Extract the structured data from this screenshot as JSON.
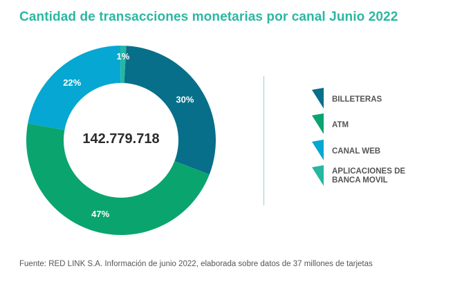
{
  "chart_data": {
    "type": "pie",
    "title": "Cantidad de transacciones monetarias por canal Junio 2022",
    "center_label": "142.779.718",
    "slices": [
      {
        "name": "BILLETERAS",
        "value": 30,
        "label": "30%",
        "color": "#086f8a"
      },
      {
        "name": "ATM",
        "value": 47,
        "label": "47%",
        "color": "#0aa56e"
      },
      {
        "name": "CANAL WEB",
        "value": 22,
        "label": "22%",
        "color": "#06a7d2"
      },
      {
        "name": "APLICACIONES DE BANCA MOVIL",
        "value": 1,
        "label": "1%",
        "color": "#26b6a2"
      }
    ],
    "legend_position": "right",
    "source": "Fuente: RED LINK S.A. Información de junio 2022, elaborada sobre datos de 37 millones de tarjetas"
  },
  "legend": [
    {
      "line1": "BILLETERAS",
      "line2": "",
      "color": "#086f8a"
    },
    {
      "line1": "ATM",
      "line2": "",
      "color": "#0aa56e"
    },
    {
      "line1": "CANAL WEB",
      "line2": "",
      "color": "#06a7d2"
    },
    {
      "line1": "APLICACIONES DE",
      "line2": "BANCA MOVIL",
      "color": "#26b6a2"
    }
  ]
}
